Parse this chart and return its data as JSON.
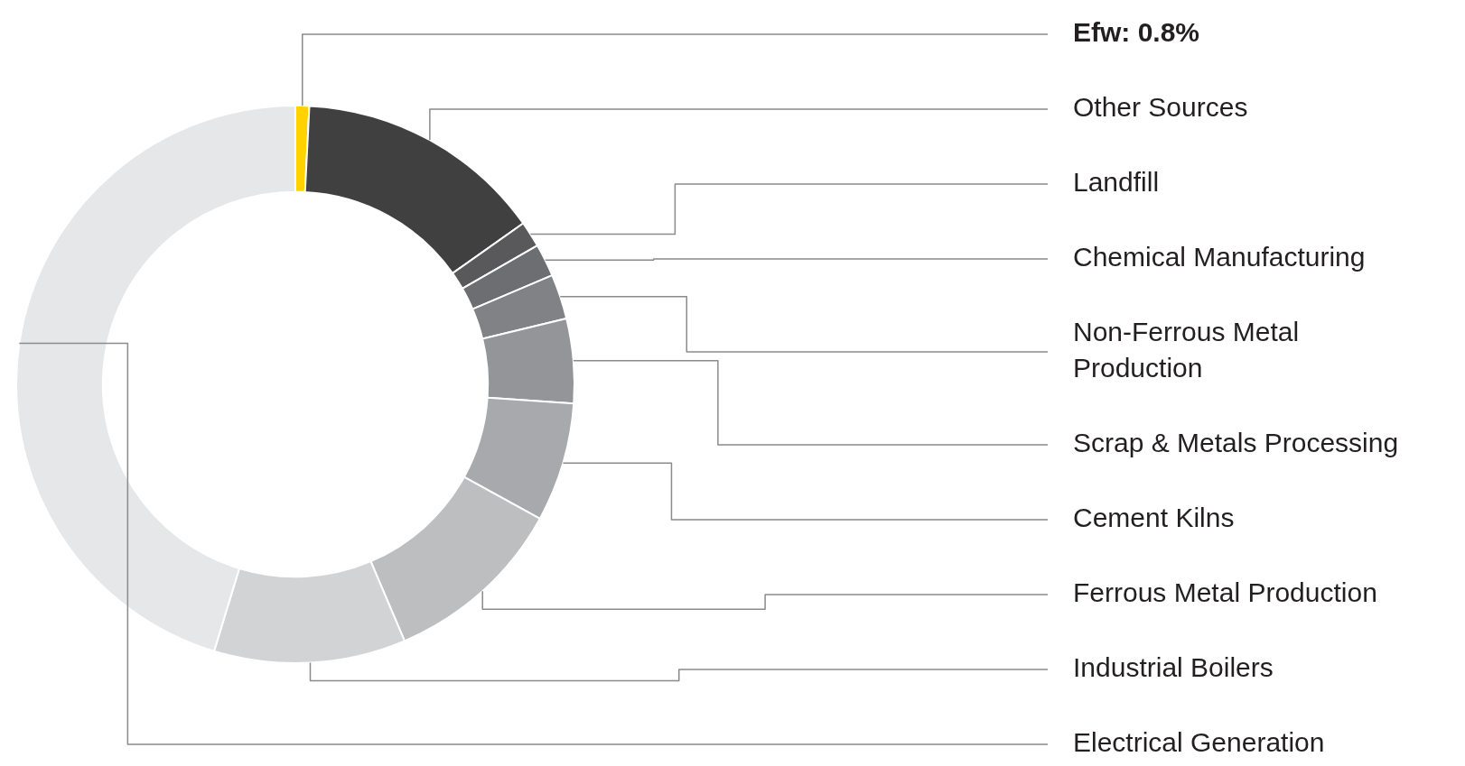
{
  "chart_data": {
    "type": "donut",
    "categories": [
      "Efw",
      "Other Sources",
      "Landfill",
      "Chemical Manufacturing",
      "Non-Ferrous Metal Production",
      "Scrap & Metals Processing",
      "Cement Kilns",
      "Ferrous Metal Production",
      "Industrial Boilers",
      "Electrical Generation"
    ],
    "values": [
      0.8,
      14.4,
      1.5,
      1.9,
      2.6,
      4.9,
      6.9,
      10.6,
      11.1,
      45.3
    ],
    "value_labels": [
      "0.8%",
      null,
      null,
      null,
      null,
      null,
      null,
      null,
      null,
      null
    ],
    "colors": [
      "#ffd200",
      "#404041",
      "#59595b",
      "#6d6e71",
      "#808285",
      "#939598",
      "#a7a9ac",
      "#bcbec0",
      "#d1d3d4",
      "#e6e7e8"
    ]
  }
}
